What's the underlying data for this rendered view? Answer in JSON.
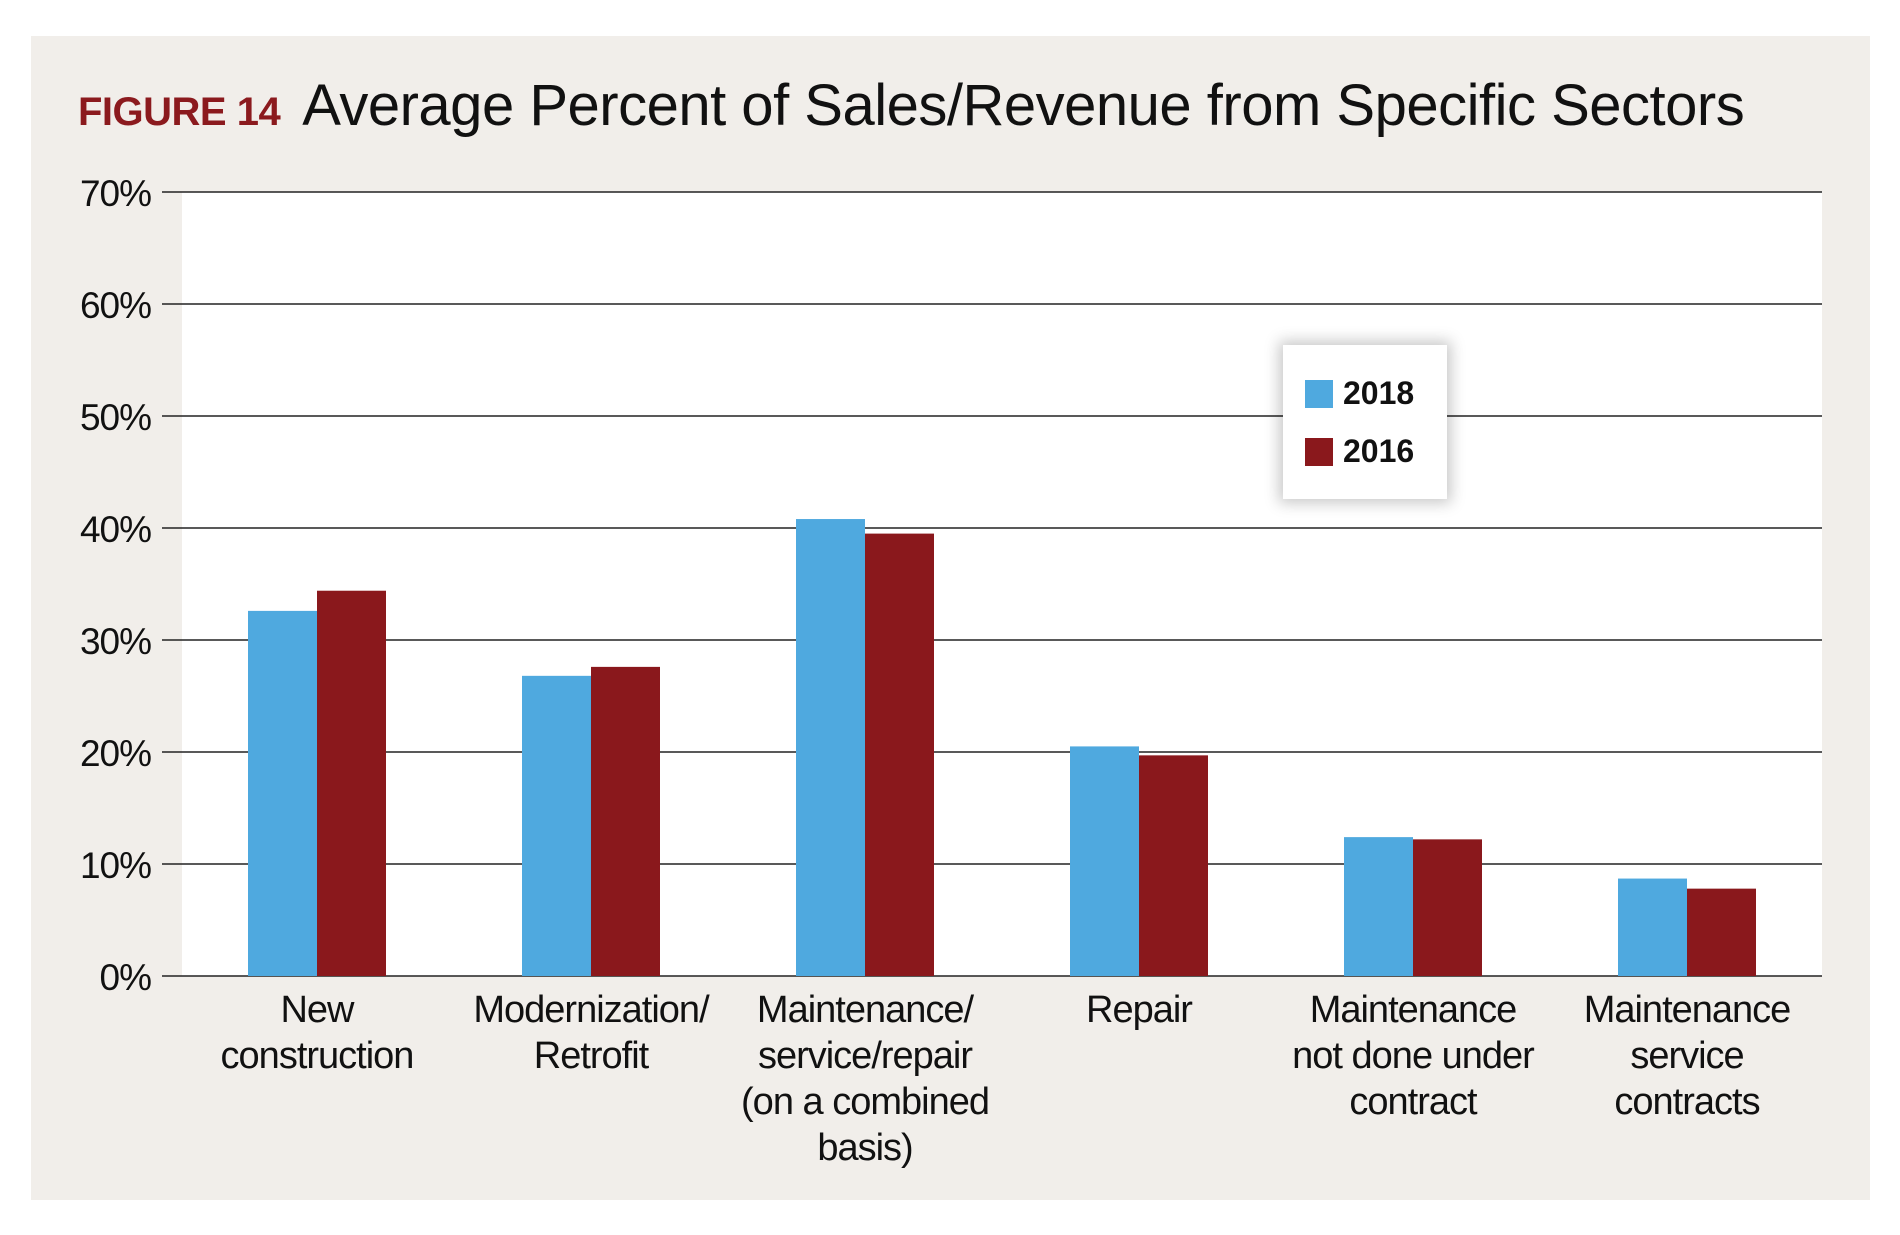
{
  "figure_label": "FIGURE 14",
  "title": "Average Percent of Sales/Revenue from Specific Sectors",
  "colors": {
    "series_2018": "#4fa9df",
    "series_2016": "#8a181c",
    "panel": "#f1eeea"
  },
  "chart_data": {
    "type": "bar",
    "title": "Average Percent of Sales/Revenue from Specific Sectors",
    "xlabel": "",
    "ylabel": "",
    "ylim": [
      0,
      70
    ],
    "yticks": [
      0,
      10,
      20,
      30,
      40,
      50,
      60,
      70
    ],
    "ytick_labels": [
      "0%",
      "10%",
      "20%",
      "30%",
      "40%",
      "50%",
      "60%",
      "70%"
    ],
    "grid": true,
    "legend_position": "top-right",
    "categories": [
      [
        "New",
        "construction"
      ],
      [
        "Modernization/",
        "Retrofit"
      ],
      [
        "Maintenance/",
        "service/repair",
        "(on a combined",
        "basis)"
      ],
      [
        "Repair"
      ],
      [
        "Maintenance",
        "not done under",
        "contract"
      ],
      [
        "Maintenance",
        "service",
        "contracts"
      ]
    ],
    "series": [
      {
        "name": "2018",
        "values": [
          32.6,
          26.8,
          40.8,
          20.5,
          12.4,
          8.7
        ]
      },
      {
        "name": "2016",
        "values": [
          34.4,
          27.6,
          39.5,
          19.7,
          12.2,
          7.8
        ]
      }
    ]
  }
}
